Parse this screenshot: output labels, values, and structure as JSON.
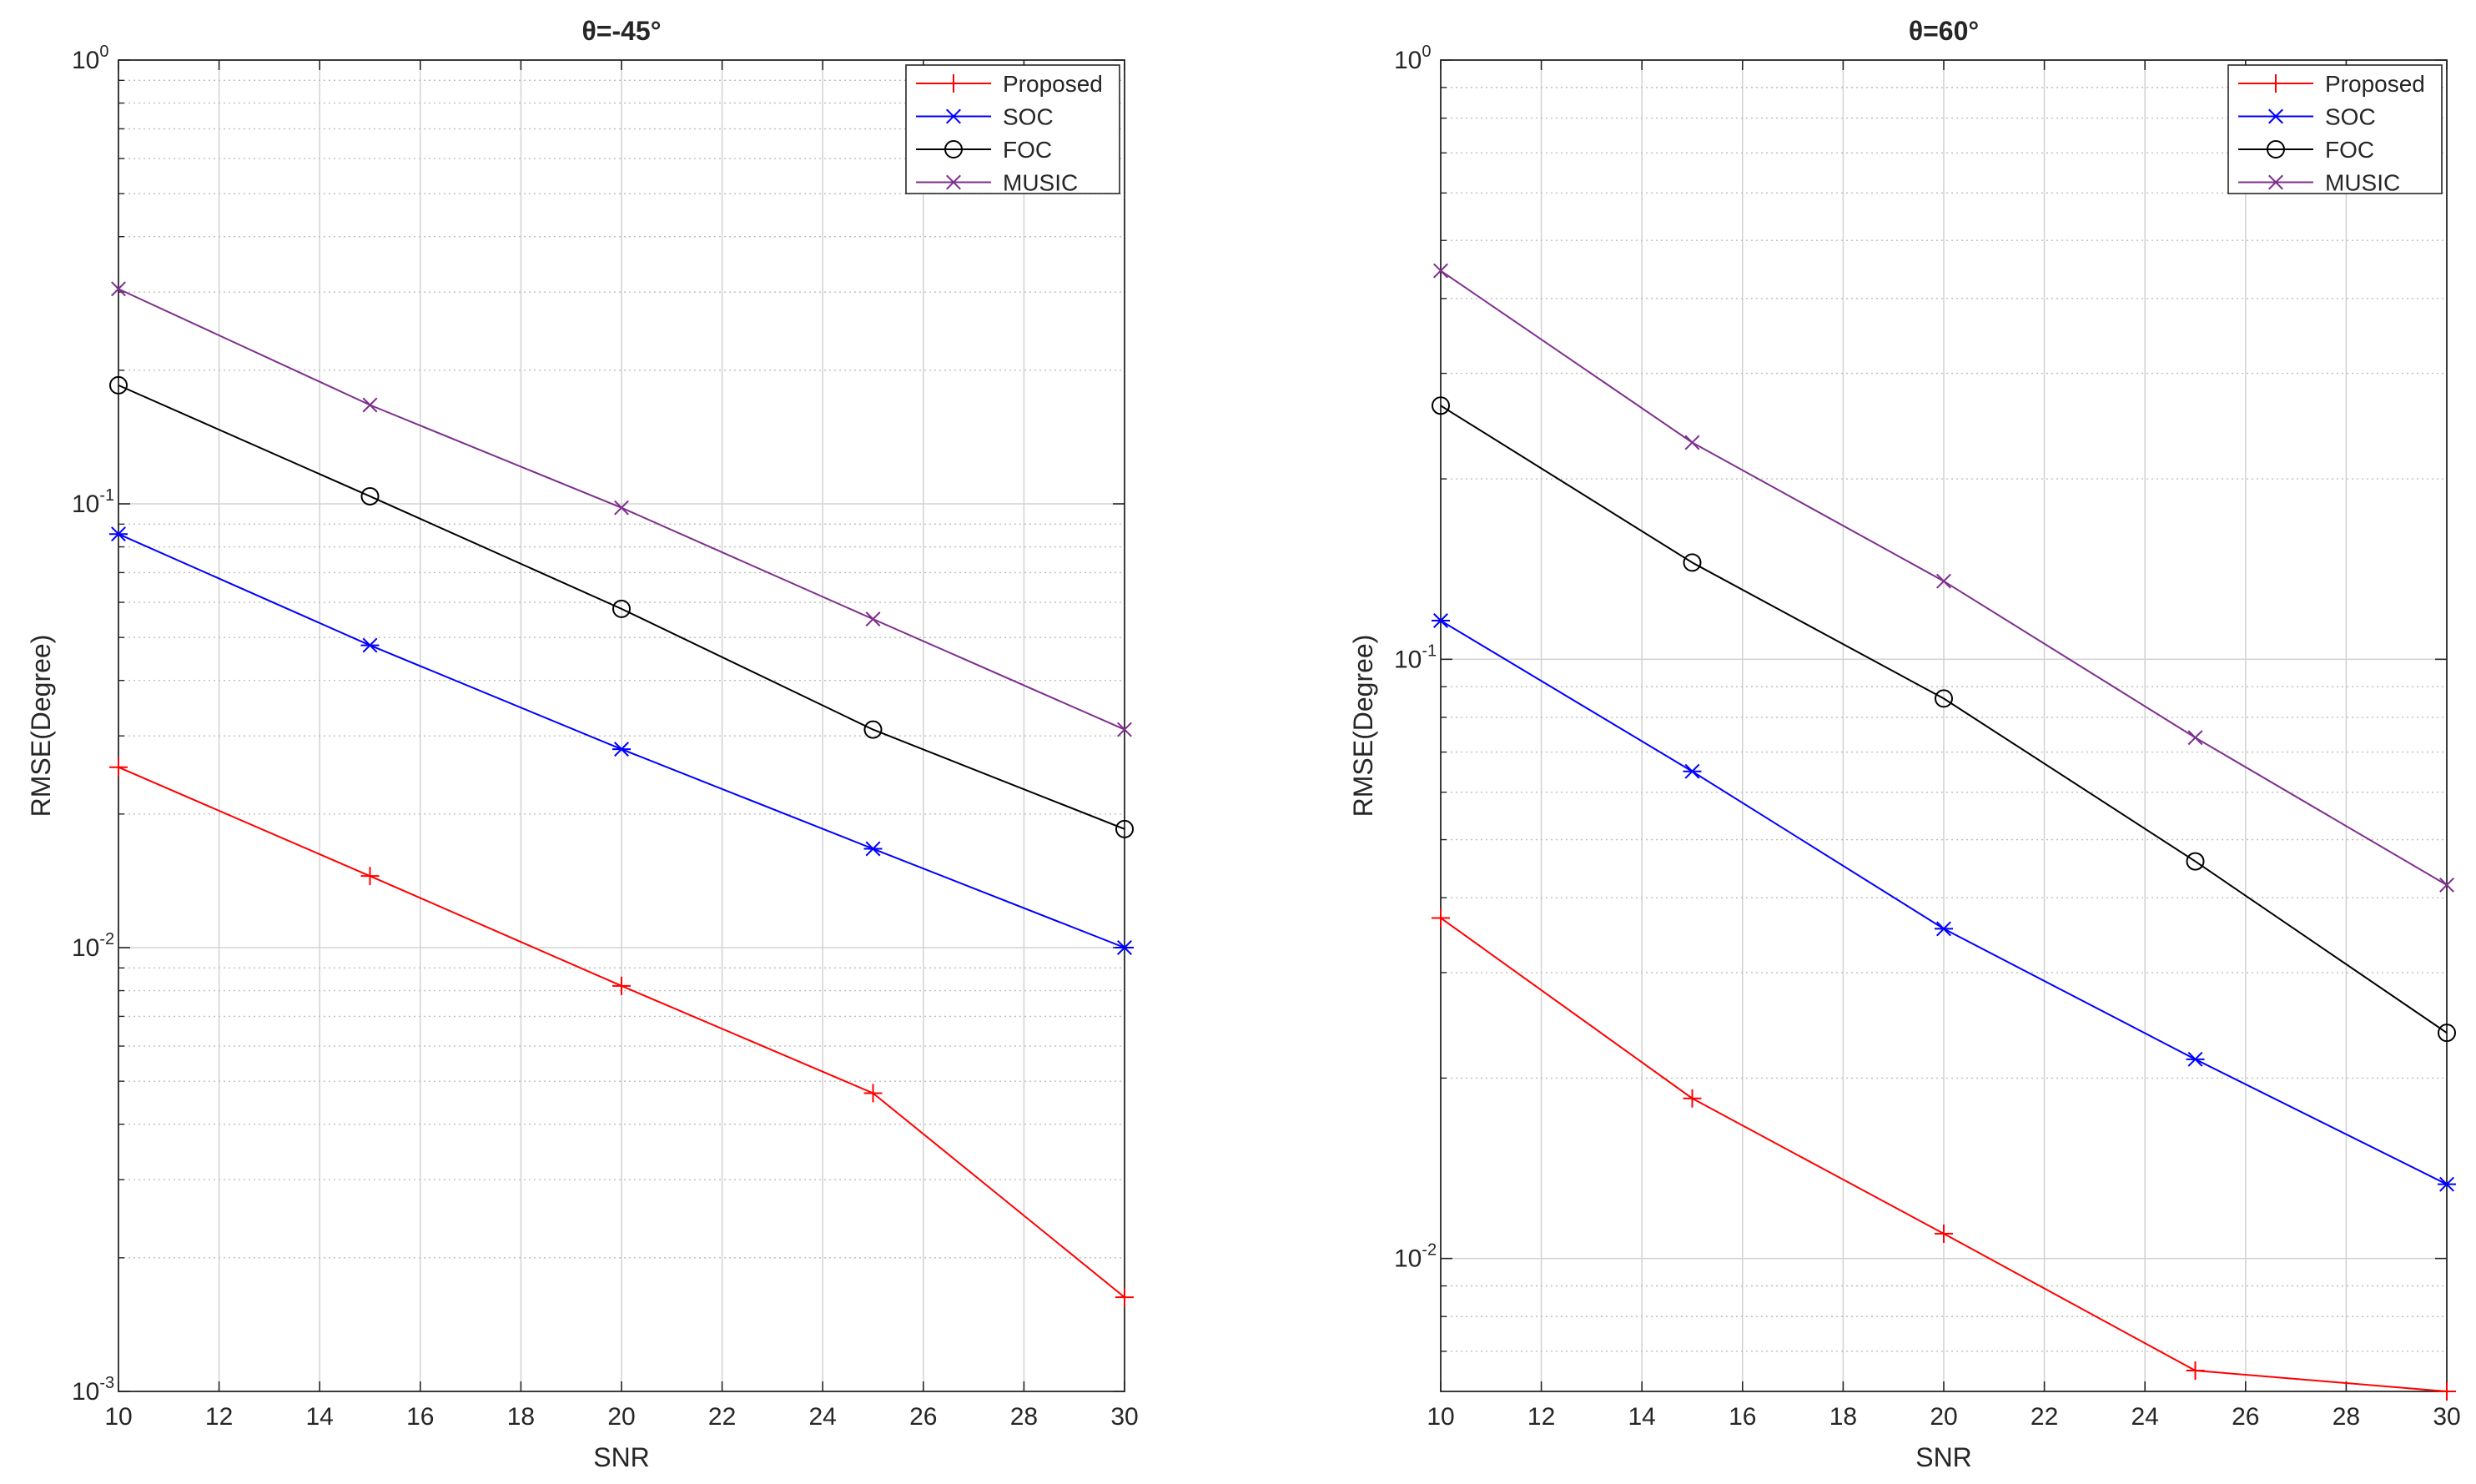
{
  "chart_data": [
    {
      "type": "line",
      "title": "θ=-45°",
      "xlabel": "SNR",
      "ylabel": "RMSE(Degree)",
      "yscale": "log",
      "xlim": [
        10,
        30
      ],
      "ylim": [
        0.001,
        1
      ],
      "grid": true,
      "legend_location": "top-right",
      "x": [
        10,
        15,
        20,
        25,
        30
      ],
      "x_ticks": [
        10,
        12,
        14,
        16,
        18,
        20,
        22,
        24,
        26,
        28,
        30
      ],
      "y_ticks": [
        {
          "value": 0.001,
          "base": "10",
          "exp": "-3"
        },
        {
          "value": 0.01,
          "base": "10",
          "exp": "-2"
        },
        {
          "value": 0.1,
          "base": "10",
          "exp": "-1"
        },
        {
          "value": 1,
          "base": "10",
          "exp": "0"
        }
      ],
      "series": [
        {
          "name": "Proposed",
          "color": "#ff0000",
          "marker": "plus",
          "values": [
            0.0255,
            0.0145,
            0.0082,
            0.0047,
            0.00163
          ]
        },
        {
          "name": "SOC",
          "color": "#0000ff",
          "marker": "asterisk",
          "values": [
            0.0855,
            0.048,
            0.028,
            0.0167,
            0.01
          ]
        },
        {
          "name": "FOC",
          "color": "#000000",
          "marker": "circle",
          "values": [
            0.185,
            0.104,
            0.058,
            0.031,
            0.0185
          ]
        },
        {
          "name": "MUSIC",
          "color": "#7e2f8e",
          "marker": "x",
          "values": [
            0.305,
            0.167,
            0.098,
            0.055,
            0.031
          ]
        }
      ]
    },
    {
      "type": "line",
      "title": "θ=60°",
      "xlabel": "SNR",
      "ylabel": "RMSE(Degree)",
      "yscale": "log",
      "xlim": [
        10,
        30
      ],
      "ylim": [
        0.006,
        1
      ],
      "grid": true,
      "legend_location": "top-right",
      "x": [
        10,
        15,
        20,
        25,
        30
      ],
      "x_ticks": [
        10,
        12,
        14,
        16,
        18,
        20,
        22,
        24,
        26,
        28,
        30
      ],
      "y_ticks": [
        {
          "value": 0.01,
          "base": "10",
          "exp": "-2"
        },
        {
          "value": 0.1,
          "base": "10",
          "exp": "-1"
        },
        {
          "value": 1,
          "base": "10",
          "exp": "0"
        }
      ],
      "series": [
        {
          "name": "Proposed",
          "color": "#ff0000",
          "marker": "plus",
          "values": [
            0.037,
            0.0185,
            0.011,
            0.0065,
            0.006
          ]
        },
        {
          "name": "SOC",
          "color": "#0000ff",
          "marker": "asterisk",
          "values": [
            0.116,
            0.065,
            0.0355,
            0.0215,
            0.0133
          ]
        },
        {
          "name": "FOC",
          "color": "#000000",
          "marker": "circle",
          "values": [
            0.265,
            0.145,
            0.086,
            0.046,
            0.0238
          ]
        },
        {
          "name": "MUSIC",
          "color": "#7e2f8e",
          "marker": "x",
          "values": [
            0.445,
            0.23,
            0.135,
            0.074,
            0.042
          ]
        }
      ]
    }
  ]
}
